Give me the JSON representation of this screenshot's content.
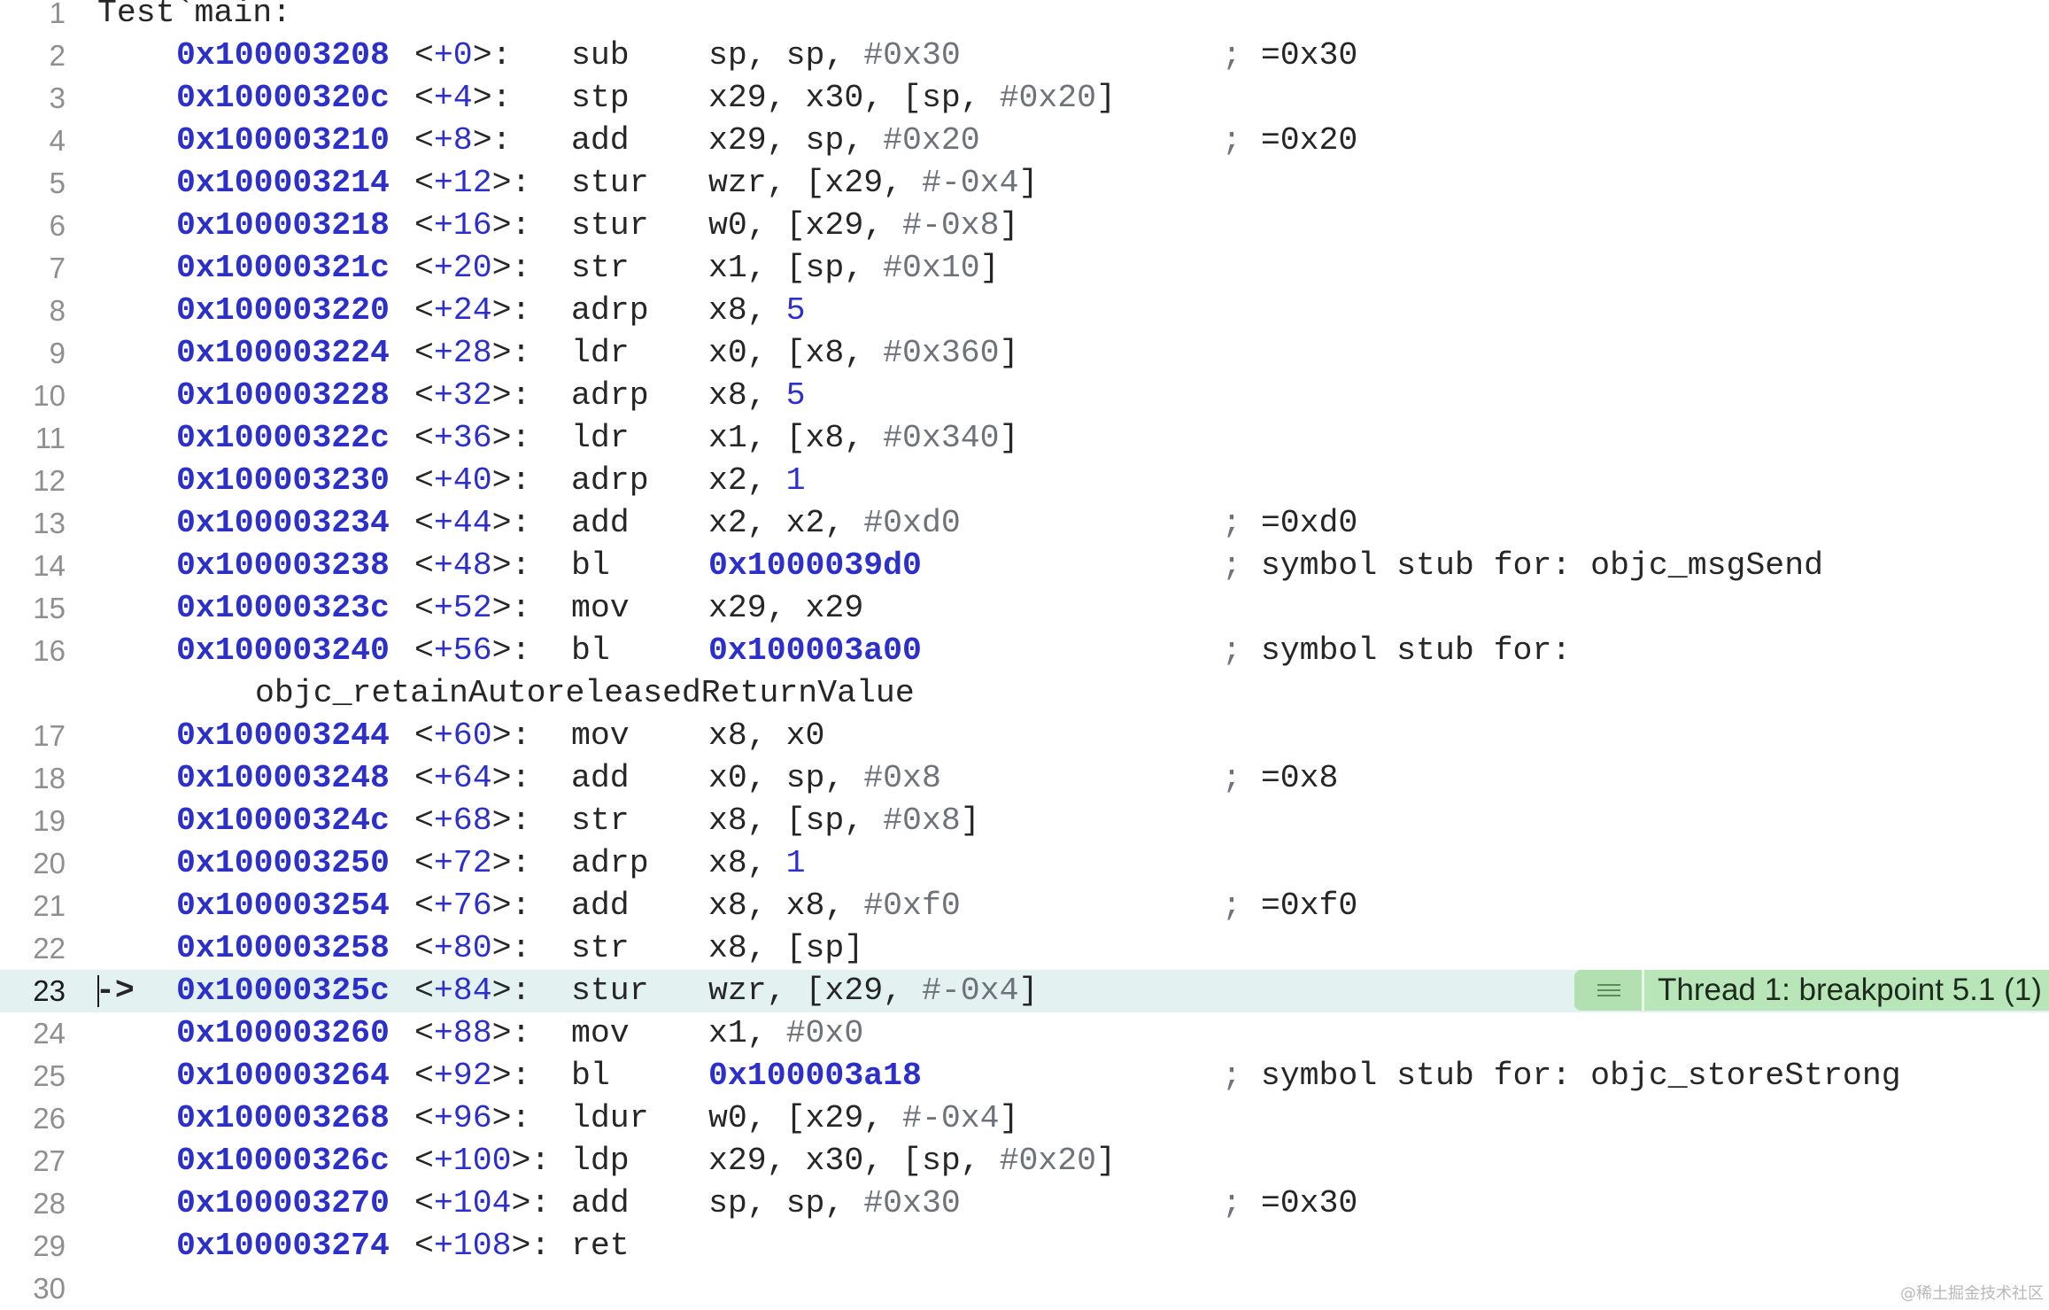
{
  "function_label": "Test`main:",
  "current_line": 23,
  "badge": {
    "icon": "menu-lines-icon",
    "text": "Thread 1: breakpoint 5.1 (1)"
  },
  "pc_arrow": "->",
  "watermark": "@稀土掘金技术社区",
  "colors": {
    "address": "#2c2fc9",
    "immediate": "#6e737b",
    "highlight": "#e3f1f1",
    "badge": "#b9e6b8"
  },
  "lines": [
    {
      "n": 1,
      "title": true
    },
    {
      "n": 2,
      "addr": "0x100003208",
      "off": "+0",
      "op": "sub",
      "args": [
        [
          "sp, sp, ",
          "plain"
        ],
        [
          "#0x30",
          "imm"
        ]
      ],
      "comment": "=0x30"
    },
    {
      "n": 3,
      "addr": "0x10000320c",
      "off": "+4",
      "op": "stp",
      "args": [
        [
          "x29, x30, [sp, ",
          "plain"
        ],
        [
          "#0x20",
          "imm"
        ],
        [
          "]",
          "plain"
        ]
      ]
    },
    {
      "n": 4,
      "addr": "0x100003210",
      "off": "+8",
      "op": "add",
      "args": [
        [
          "x29, sp, ",
          "plain"
        ],
        [
          "#0x20",
          "imm"
        ]
      ],
      "comment": "=0x20"
    },
    {
      "n": 5,
      "addr": "0x100003214",
      "off": "+12",
      "op": "stur",
      "args": [
        [
          "wzr, [x29, ",
          "plain"
        ],
        [
          "#-0x4",
          "imm"
        ],
        [
          "]",
          "plain"
        ]
      ]
    },
    {
      "n": 6,
      "addr": "0x100003218",
      "off": "+16",
      "op": "stur",
      "args": [
        [
          "w0, [x29, ",
          "plain"
        ],
        [
          "#-0x8",
          "imm"
        ],
        [
          "]",
          "plain"
        ]
      ]
    },
    {
      "n": 7,
      "addr": "0x10000321c",
      "off": "+20",
      "op": "str",
      "args": [
        [
          "x1, [sp, ",
          "plain"
        ],
        [
          "#0x10",
          "imm"
        ],
        [
          "]",
          "plain"
        ]
      ]
    },
    {
      "n": 8,
      "addr": "0x100003220",
      "off": "+24",
      "op": "adrp",
      "args": [
        [
          "x8, ",
          "plain"
        ],
        [
          "5",
          "num"
        ]
      ]
    },
    {
      "n": 9,
      "addr": "0x100003224",
      "off": "+28",
      "op": "ldr",
      "args": [
        [
          "x0, [x8, ",
          "plain"
        ],
        [
          "#0x360",
          "imm"
        ],
        [
          "]",
          "plain"
        ]
      ]
    },
    {
      "n": 10,
      "addr": "0x100003228",
      "off": "+32",
      "op": "adrp",
      "args": [
        [
          "x8, ",
          "plain"
        ],
        [
          "5",
          "num"
        ]
      ]
    },
    {
      "n": 11,
      "addr": "0x10000322c",
      "off": "+36",
      "op": "ldr",
      "args": [
        [
          "x1, [x8, ",
          "plain"
        ],
        [
          "#0x340",
          "imm"
        ],
        [
          "]",
          "plain"
        ]
      ]
    },
    {
      "n": 12,
      "addr": "0x100003230",
      "off": "+40",
      "op": "adrp",
      "args": [
        [
          "x2, ",
          "plain"
        ],
        [
          "1",
          "num"
        ]
      ]
    },
    {
      "n": 13,
      "addr": "0x100003234",
      "off": "+44",
      "op": "add",
      "args": [
        [
          "x2, x2, ",
          "plain"
        ],
        [
          "#0xd0",
          "imm"
        ]
      ],
      "comment": "=0xd0"
    },
    {
      "n": 14,
      "addr": "0x100003238",
      "off": "+48",
      "op": "bl",
      "args": [
        [
          "0x1000039d0",
          "addr"
        ]
      ],
      "comment": "symbol stub for: objc_msgSend"
    },
    {
      "n": 15,
      "addr": "0x10000323c",
      "off": "+52",
      "op": "mov",
      "args": [
        [
          "x29, x29",
          "plain"
        ]
      ]
    },
    {
      "n": 16,
      "addr": "0x100003240",
      "off": "+56",
      "op": "bl",
      "args": [
        [
          "0x100003a00",
          "addr"
        ]
      ],
      "comment": "symbol stub for:",
      "continuation": "objc_retainAutoreleasedReturnValue"
    },
    {
      "n": 17,
      "addr": "0x100003244",
      "off": "+60",
      "op": "mov",
      "args": [
        [
          "x8, x0",
          "plain"
        ]
      ]
    },
    {
      "n": 18,
      "addr": "0x100003248",
      "off": "+64",
      "op": "add",
      "args": [
        [
          "x0, sp, ",
          "plain"
        ],
        [
          "#0x8",
          "imm"
        ]
      ],
      "comment": "=0x8"
    },
    {
      "n": 19,
      "addr": "0x10000324c",
      "off": "+68",
      "op": "str",
      "args": [
        [
          "x8, [sp, ",
          "plain"
        ],
        [
          "#0x8",
          "imm"
        ],
        [
          "]",
          "plain"
        ]
      ]
    },
    {
      "n": 20,
      "addr": "0x100003250",
      "off": "+72",
      "op": "adrp",
      "args": [
        [
          "x8, ",
          "plain"
        ],
        [
          "1",
          "num"
        ]
      ]
    },
    {
      "n": 21,
      "addr": "0x100003254",
      "off": "+76",
      "op": "add",
      "args": [
        [
          "x8, x8, ",
          "plain"
        ],
        [
          "#0xf0",
          "imm"
        ]
      ],
      "comment": "=0xf0"
    },
    {
      "n": 22,
      "addr": "0x100003258",
      "off": "+80",
      "op": "str",
      "args": [
        [
          "x8, [sp]",
          "plain"
        ]
      ]
    },
    {
      "n": 23,
      "addr": "0x10000325c",
      "off": "+84",
      "op": "stur",
      "args": [
        [
          "wzr, [x29, ",
          "plain"
        ],
        [
          "#-0x4",
          "imm"
        ],
        [
          "]",
          "plain"
        ]
      ]
    },
    {
      "n": 24,
      "addr": "0x100003260",
      "off": "+88",
      "op": "mov",
      "args": [
        [
          "x1, ",
          "plain"
        ],
        [
          "#0x0",
          "imm"
        ]
      ]
    },
    {
      "n": 25,
      "addr": "0x100003264",
      "off": "+92",
      "op": "bl",
      "args": [
        [
          "0x100003a18",
          "addr"
        ]
      ],
      "comment": "symbol stub for: objc_storeStrong"
    },
    {
      "n": 26,
      "addr": "0x100003268",
      "off": "+96",
      "op": "ldur",
      "args": [
        [
          "w0, [x29, ",
          "plain"
        ],
        [
          "#-0x4",
          "imm"
        ],
        [
          "]",
          "plain"
        ]
      ]
    },
    {
      "n": 27,
      "addr": "0x10000326c",
      "off": "+100",
      "op": "ldp",
      "args": [
        [
          "x29, x30, [sp, ",
          "plain"
        ],
        [
          "#0x20",
          "imm"
        ],
        [
          "]",
          "plain"
        ]
      ]
    },
    {
      "n": 28,
      "addr": "0x100003270",
      "off": "+104",
      "op": "add",
      "args": [
        [
          "sp, sp, ",
          "plain"
        ],
        [
          "#0x30",
          "imm"
        ]
      ],
      "comment": "=0x30"
    },
    {
      "n": 29,
      "addr": "0x100003274",
      "off": "+108",
      "op": "ret",
      "args": []
    },
    {
      "n": 30,
      "empty": true
    }
  ]
}
